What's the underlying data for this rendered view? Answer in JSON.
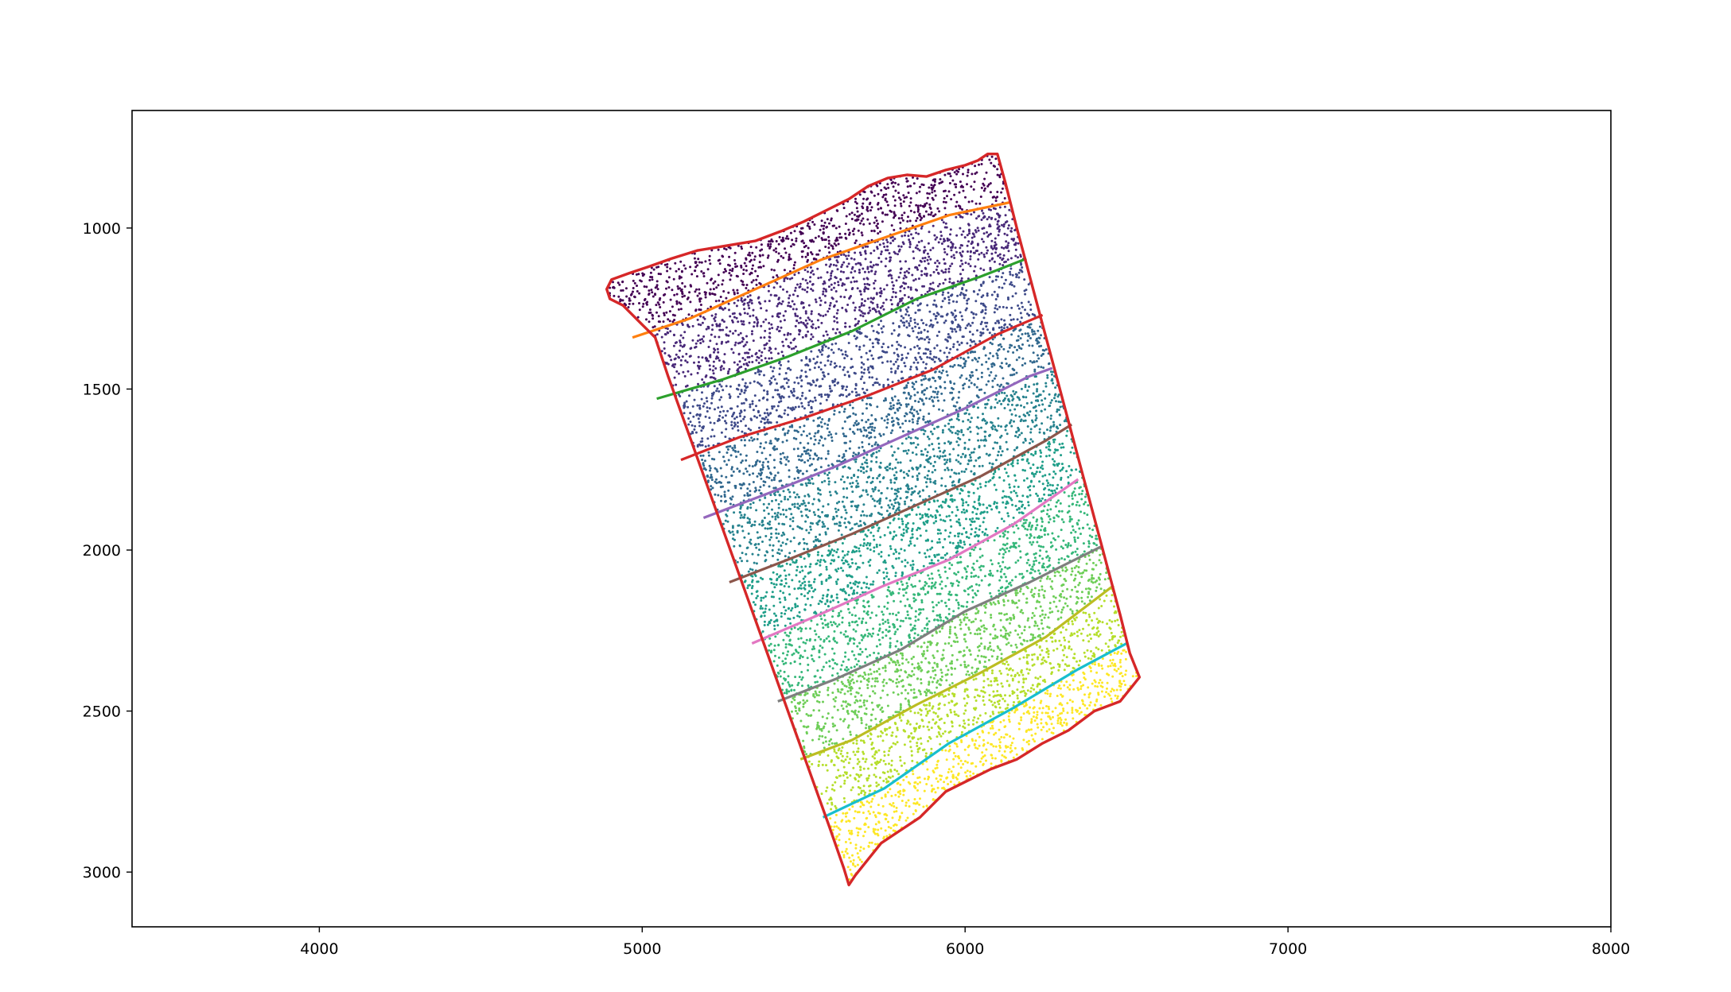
{
  "chart_data": {
    "type": "scatter",
    "title": "",
    "xlabel": "",
    "ylabel": "",
    "xlim": [
      3420,
      8000
    ],
    "ylim": [
      3170,
      635
    ],
    "y_inverted": true,
    "grid": false,
    "legend": "none",
    "x_ticks": [
      4000,
      5000,
      6000,
      7000,
      8000
    ],
    "x_tick_labels": [
      "4000",
      "5000",
      "6000",
      "7000",
      "8000"
    ],
    "y_ticks": [
      1000,
      1500,
      2000,
      2500,
      3000
    ],
    "y_tick_labels": [
      "1000",
      "1500",
      "2000",
      "2500",
      "3000"
    ],
    "colormap": "viridis",
    "bands": 10,
    "boundary": {
      "color": "#d62728",
      "outline": [
        [
          4890,
          1190
        ],
        [
          4905,
          1160
        ],
        [
          4960,
          1140
        ],
        [
          5020,
          1120
        ],
        [
          5090,
          1095
        ],
        [
          5170,
          1070
        ],
        [
          5260,
          1055
        ],
        [
          5350,
          1040
        ],
        [
          5430,
          1010
        ],
        [
          5500,
          980
        ],
        [
          5570,
          945
        ],
        [
          5640,
          910
        ],
        [
          5700,
          870
        ],
        [
          5760,
          845
        ],
        [
          5820,
          835
        ],
        [
          5880,
          840
        ],
        [
          5940,
          820
        ],
        [
          6000,
          805
        ],
        [
          6040,
          790
        ],
        [
          6070,
          770
        ],
        [
          6100,
          770
        ],
        [
          6125,
          860
        ],
        [
          6160,
          1000
        ],
        [
          6200,
          1150
        ],
        [
          6240,
          1300
        ],
        [
          6280,
          1450
        ],
        [
          6320,
          1600
        ],
        [
          6360,
          1750
        ],
        [
          6400,
          1900
        ],
        [
          6440,
          2050
        ],
        [
          6480,
          2200
        ],
        [
          6510,
          2320
        ],
        [
          6540,
          2395
        ],
        [
          6520,
          2420
        ],
        [
          6480,
          2470
        ],
        [
          6400,
          2500
        ],
        [
          6320,
          2560
        ],
        [
          6240,
          2600
        ],
        [
          6160,
          2650
        ],
        [
          6080,
          2680
        ],
        [
          6000,
          2720
        ],
        [
          5940,
          2750
        ],
        [
          5900,
          2790
        ],
        [
          5860,
          2830
        ],
        [
          5800,
          2870
        ],
        [
          5740,
          2910
        ],
        [
          5700,
          2960
        ],
        [
          5660,
          3010
        ],
        [
          5640,
          3040
        ],
        [
          5625,
          2990
        ],
        [
          5580,
          2860
        ],
        [
          5530,
          2720
        ],
        [
          5480,
          2580
        ],
        [
          5430,
          2440
        ],
        [
          5380,
          2300
        ],
        [
          5330,
          2160
        ],
        [
          5280,
          2020
        ],
        [
          5230,
          1880
        ],
        [
          5180,
          1740
        ],
        [
          5130,
          1600
        ],
        [
          5080,
          1460
        ],
        [
          5040,
          1340
        ],
        [
          5000,
          1300
        ],
        [
          4940,
          1240
        ],
        [
          4900,
          1220
        ]
      ]
    },
    "layer_lines": [
      {
        "color": "#ff7f0e",
        "x": [
          4970,
          5150,
          5350,
          5550,
          5750,
          5950,
          6140
        ],
        "y": [
          1340,
          1280,
          1190,
          1100,
          1030,
          960,
          920
        ]
      },
      {
        "color": "#2ca02c",
        "x": [
          5045,
          5250,
          5450,
          5650,
          5850,
          6050,
          6190
        ],
        "y": [
          1530,
          1470,
          1400,
          1320,
          1220,
          1150,
          1095
        ]
      },
      {
        "color": "#d62728",
        "x": [
          5120,
          5300,
          5500,
          5700,
          5900,
          6100,
          6240
        ],
        "y": [
          1720,
          1650,
          1590,
          1520,
          1440,
          1330,
          1270
        ]
      },
      {
        "color": "#9467bd",
        "x": [
          5190,
          5400,
          5600,
          5800,
          6000,
          6200,
          6270
        ],
        "y": [
          1900,
          1820,
          1740,
          1650,
          1560,
          1460,
          1435
        ]
      },
      {
        "color": "#8c564b",
        "x": [
          5270,
          5450,
          5650,
          5850,
          6050,
          6250,
          6330
        ],
        "y": [
          2100,
          2030,
          1950,
          1860,
          1770,
          1660,
          1610
        ]
      },
      {
        "color": "#e377c2",
        "x": [
          5340,
          5550,
          5750,
          5950,
          6150,
          6350
        ],
        "y": [
          2290,
          2200,
          2110,
          2030,
          1920,
          1780
        ]
      },
      {
        "color": "#7f7f7f",
        "x": [
          5420,
          5600,
          5800,
          6000,
          6200,
          6420
        ],
        "y": [
          2470,
          2400,
          2310,
          2190,
          2100,
          1990
        ]
      },
      {
        "color": "#bcbd22",
        "x": [
          5490,
          5650,
          5850,
          6050,
          6250,
          6460
        ],
        "y": [
          2650,
          2590,
          2480,
          2380,
          2270,
          2110
        ]
      },
      {
        "color": "#17becf",
        "x": [
          5560,
          5750,
          5950,
          6150,
          6350,
          6500
        ],
        "y": [
          2830,
          2740,
          2600,
          2490,
          2370,
          2290
        ]
      }
    ],
    "point_count": 9000,
    "random_seed": 7
  }
}
